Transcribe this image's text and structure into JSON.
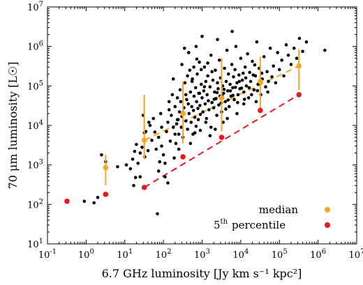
{
  "chart_data": {
    "type": "scatter",
    "title": "",
    "xlabel": "6.7 GHz luminosity [Jy km s⁻¹ kpc²]",
    "ylabel": "70 μm luminosity [L☉]",
    "xscale": "log",
    "yscale": "log",
    "xlim": [
      0.1,
      10000000
    ],
    "ylim": [
      10,
      10000000
    ],
    "x_ticks": [
      {
        "value": 0.1,
        "base": "10",
        "exp": "-1"
      },
      {
        "value": 1,
        "base": "10",
        "exp": "0"
      },
      {
        "value": 10,
        "base": "10",
        "exp": "1"
      },
      {
        "value": 100,
        "base": "10",
        "exp": "2"
      },
      {
        "value": 1000,
        "base": "10",
        "exp": "3"
      },
      {
        "value": 10000,
        "base": "10",
        "exp": "4"
      },
      {
        "value": 100000,
        "base": "10",
        "exp": "5"
      },
      {
        "value": 1000000,
        "base": "10",
        "exp": "6"
      },
      {
        "value": 10000000,
        "base": "10",
        "exp": "7"
      }
    ],
    "y_ticks": [
      {
        "value": 10,
        "base": "10",
        "exp": "1"
      },
      {
        "value": 100,
        "base": "10",
        "exp": "2"
      },
      {
        "value": 1000,
        "base": "10",
        "exp": "3"
      },
      {
        "value": 10000,
        "base": "10",
        "exp": "4"
      },
      {
        "value": 100000,
        "base": "10",
        "exp": "5"
      },
      {
        "value": 1000000,
        "base": "10",
        "exp": "6"
      },
      {
        "value": 10000000,
        "base": "10",
        "exp": "7"
      }
    ],
    "legend": {
      "placement": "bottom-right",
      "entries": [
        {
          "label": "median",
          "color": "#f5a623"
        },
        {
          "label_sup": "th",
          "label_base": "5",
          "label_rest": "percentile",
          "color": "#e8191f"
        }
      ]
    },
    "series": [
      {
        "name": "sources",
        "color": "#000000",
        "points": [
          [
            2.5,
            1800
          ],
          [
            3.2,
            1200
          ],
          [
            0.9,
            120
          ],
          [
            1.6,
            110
          ],
          [
            2.0,
            150
          ],
          [
            6.5,
            900
          ],
          [
            11,
            1000
          ],
          [
            14,
            800
          ],
          [
            17,
            300
          ],
          [
            19,
            480
          ],
          [
            16,
            1400
          ],
          [
            22,
            1100
          ],
          [
            25,
            2000
          ],
          [
            18,
            2200
          ],
          [
            20,
            3300
          ],
          [
            28,
            2800
          ],
          [
            32,
            6500
          ],
          [
            40,
            2300
          ],
          [
            45,
            10000
          ],
          [
            55,
            15000
          ],
          [
            60,
            6800
          ],
          [
            70,
            58
          ],
          [
            75,
            5000
          ],
          [
            85,
            20000
          ],
          [
            90,
            3000
          ],
          [
            100,
            1800
          ],
          [
            110,
            1100
          ],
          [
            120,
            7000
          ],
          [
            130,
            12000
          ],
          [
            140,
            25000
          ],
          [
            150,
            4000
          ],
          [
            160,
            18000
          ],
          [
            170,
            60000
          ],
          [
            180,
            9000
          ],
          [
            190,
            1500
          ],
          [
            200,
            30000
          ],
          [
            210,
            3500
          ],
          [
            220,
            11000
          ],
          [
            230,
            50000
          ],
          [
            240,
            14000
          ],
          [
            250,
            6000
          ],
          [
            260,
            22000
          ],
          [
            270,
            80000
          ],
          [
            280,
            40000
          ],
          [
            290,
            9000
          ],
          [
            300,
            17000
          ],
          [
            320,
            5000
          ],
          [
            340,
            28000
          ],
          [
            360,
            120000
          ],
          [
            380,
            13000
          ],
          [
            400,
            45000
          ],
          [
            420,
            8000
          ],
          [
            440,
            35000
          ],
          [
            460,
            20000
          ],
          [
            480,
            250000
          ],
          [
            500,
            70000
          ],
          [
            520,
            12000
          ],
          [
            540,
            30000
          ],
          [
            560,
            150000
          ],
          [
            580,
            6000
          ],
          [
            600,
            24000
          ],
          [
            620,
            55000
          ],
          [
            650,
            16000
          ],
          [
            680,
            90000
          ],
          [
            700,
            9500
          ],
          [
            720,
            40000
          ],
          [
            750,
            200000
          ],
          [
            780,
            27000
          ],
          [
            800,
            14000
          ],
          [
            820,
            65000
          ],
          [
            850,
            400000
          ],
          [
            880,
            32000
          ],
          [
            900,
            19000
          ],
          [
            950,
            110000
          ],
          [
            1000,
            50000
          ],
          [
            1050,
            22000
          ],
          [
            1100,
            75000
          ],
          [
            1150,
            300000
          ],
          [
            1200,
            35000
          ],
          [
            1250,
            130000
          ],
          [
            1300,
            15000
          ],
          [
            1350,
            60000
          ],
          [
            1400,
            180000
          ],
          [
            1450,
            42000
          ],
          [
            1500,
            25000
          ],
          [
            1600,
            95000
          ],
          [
            1700,
            600000
          ],
          [
            1800,
            38000
          ],
          [
            1900,
            140000
          ],
          [
            2000,
            28000
          ],
          [
            2100,
            70000
          ],
          [
            2200,
            250000
          ],
          [
            2300,
            48000
          ],
          [
            2400,
            18000
          ],
          [
            2500,
            120000
          ],
          [
            2600,
            85000
          ],
          [
            2700,
            33000
          ],
          [
            2800,
            450000
          ],
          [
            2900,
            55000
          ],
          [
            3000,
            160000
          ],
          [
            3200,
            22000
          ],
          [
            3400,
            100000
          ],
          [
            3600,
            65000
          ],
          [
            3800,
            280000
          ],
          [
            4000,
            40000
          ],
          [
            4200,
            130000
          ],
          [
            4400,
            800000
          ],
          [
            4600,
            75000
          ],
          [
            4800,
            200000
          ],
          [
            5000,
            30000
          ],
          [
            5300,
            110000
          ],
          [
            5600,
            55000
          ],
          [
            5900,
            350000
          ],
          [
            6200,
            90000
          ],
          [
            6500,
            170000
          ],
          [
            6800,
            45000
          ],
          [
            7100,
            260000
          ],
          [
            7500,
            1000000
          ],
          [
            8000,
            120000
          ],
          [
            8500,
            60000
          ],
          [
            9000,
            190000
          ],
          [
            9500,
            85000
          ],
          [
            10000,
            500000
          ],
          [
            11000,
            140000
          ],
          [
            12000,
            70000
          ],
          [
            13000,
            300000
          ],
          [
            14000,
            100000
          ],
          [
            15000,
            650000
          ],
          [
            16000,
            50000
          ],
          [
            17000,
            220000
          ],
          [
            18000,
            130000
          ],
          [
            20000,
            420000
          ],
          [
            22000,
            80000
          ],
          [
            24000,
            180000
          ],
          [
            26000,
            1300000
          ],
          [
            28000,
            110000
          ],
          [
            30000,
            280000
          ],
          [
            33000,
            60000
          ],
          [
            36000,
            150000
          ],
          [
            40000,
            550000
          ],
          [
            44000,
            95000
          ],
          [
            48000,
            230000
          ],
          [
            52000,
            130000
          ],
          [
            58000,
            900000
          ],
          [
            64000,
            170000
          ],
          [
            70000,
            320000
          ],
          [
            80000,
            120000
          ],
          [
            90000,
            700000
          ],
          [
            100000,
            260000
          ],
          [
            115000,
            450000
          ],
          [
            130000,
            180000
          ],
          [
            150000,
            1100000
          ],
          [
            170000,
            600000
          ],
          [
            200000,
            350000
          ],
          [
            240000,
            900000
          ],
          [
            280000,
            500000
          ],
          [
            330000,
            1600000
          ],
          [
            400000,
            750000
          ],
          [
            500000,
            1300000
          ],
          [
            1500000,
            800000
          ],
          [
            1000,
            1800000
          ],
          [
            700,
            1000000
          ],
          [
            300,
            350000
          ],
          [
            450,
            700000
          ],
          [
            2500,
            1500000
          ],
          [
            6000,
            2400000
          ],
          [
            350,
            900000
          ],
          [
            180,
            150000
          ],
          [
            950,
            260000
          ],
          [
            1250,
            12000
          ],
          [
            2200,
            8000
          ],
          [
            3500,
            12000
          ],
          [
            900,
            7500
          ],
          [
            1600,
            5500
          ],
          [
            500,
            3500
          ],
          [
            650,
            6500
          ],
          [
            1700,
            9000
          ],
          [
            4500,
            15000
          ],
          [
            8000,
            20000
          ],
          [
            12000,
            35000
          ],
          [
            25000,
            40000
          ],
          [
            50000,
            70000
          ],
          [
            140,
            40000
          ],
          [
            90,
            9000
          ],
          [
            65,
            2500
          ],
          [
            110,
            500
          ],
          [
            75,
            700
          ],
          [
            130,
            350
          ],
          [
            50,
            4200
          ],
          [
            35,
            7000
          ],
          [
            42,
            12000
          ],
          [
            30,
            18000
          ],
          [
            25,
            500
          ],
          [
            33,
            1600
          ],
          [
            80,
            1200
          ],
          [
            200,
            6000
          ],
          [
            250,
            2500
          ],
          [
            230,
            14000
          ],
          [
            380,
            60000
          ],
          [
            420,
            180000
          ],
          [
            550,
            130000
          ],
          [
            610,
            300000
          ],
          [
            730,
            480000
          ],
          [
            860,
            65000
          ],
          [
            1150,
            95000
          ],
          [
            1400,
            380000
          ],
          [
            1800,
            230000
          ],
          [
            2050,
            46000
          ],
          [
            2450,
            68000
          ],
          [
            3100,
            37000
          ],
          [
            3300,
            56000
          ],
          [
            3700,
            82000
          ],
          [
            4100,
            26000
          ],
          [
            4700,
            44000
          ],
          [
            5400,
            75000
          ],
          [
            6300,
            58000
          ],
          [
            7300,
            92000
          ],
          [
            8300,
            38000
          ],
          [
            9200,
            130000
          ],
          [
            10500,
            88000
          ],
          [
            11500,
            210000
          ],
          [
            12500,
            46000
          ],
          [
            13500,
            160000
          ],
          [
            16500,
            90000
          ],
          [
            19000,
            60000
          ],
          [
            21000,
            190000
          ],
          [
            23000,
            340000
          ],
          [
            27000,
            76000
          ],
          [
            31000,
            125000
          ],
          [
            35000,
            210000
          ]
        ]
      },
      {
        "name": "median",
        "color": "#f5a623",
        "points": [
          {
            "x": 3.2,
            "y": 850,
            "ylo": 300,
            "yhi": 1800
          },
          {
            "x": 32,
            "y": 4200,
            "ylo": 1400,
            "yhi": 60000
          },
          {
            "x": 320,
            "y": 20000,
            "ylo": 3500,
            "yhi": 130000
          },
          {
            "x": 3200,
            "y": 50000,
            "ylo": 7000,
            "yhi": 500000
          },
          {
            "x": 32000,
            "y": 130000,
            "ylo": 25000,
            "yhi": 550000
          },
          {
            "x": 320000,
            "y": 320000,
            "ylo": 80000,
            "yhi": 850000
          }
        ]
      },
      {
        "name": "5th percentile",
        "color": "#e8191f",
        "points": [
          {
            "x": 0.32,
            "y": 120
          },
          {
            "x": 3.2,
            "y": 180
          },
          {
            "x": 32,
            "y": 270
          },
          {
            "x": 320,
            "y": 1600
          },
          {
            "x": 3200,
            "y": 5000
          },
          {
            "x": 32000,
            "y": 24000
          },
          {
            "x": 320000,
            "y": 60000
          }
        ]
      }
    ],
    "fits": [
      {
        "name": "median-fit",
        "color": "#f5a623",
        "style": "dashed",
        "from": [
          32,
          4200
        ],
        "to": [
          320000,
          320000
        ]
      },
      {
        "name": "5th-percentile-fit",
        "color": "#e8191f",
        "style": "dashed",
        "from": [
          32,
          270
        ],
        "to": [
          320000,
          60000
        ]
      }
    ]
  }
}
